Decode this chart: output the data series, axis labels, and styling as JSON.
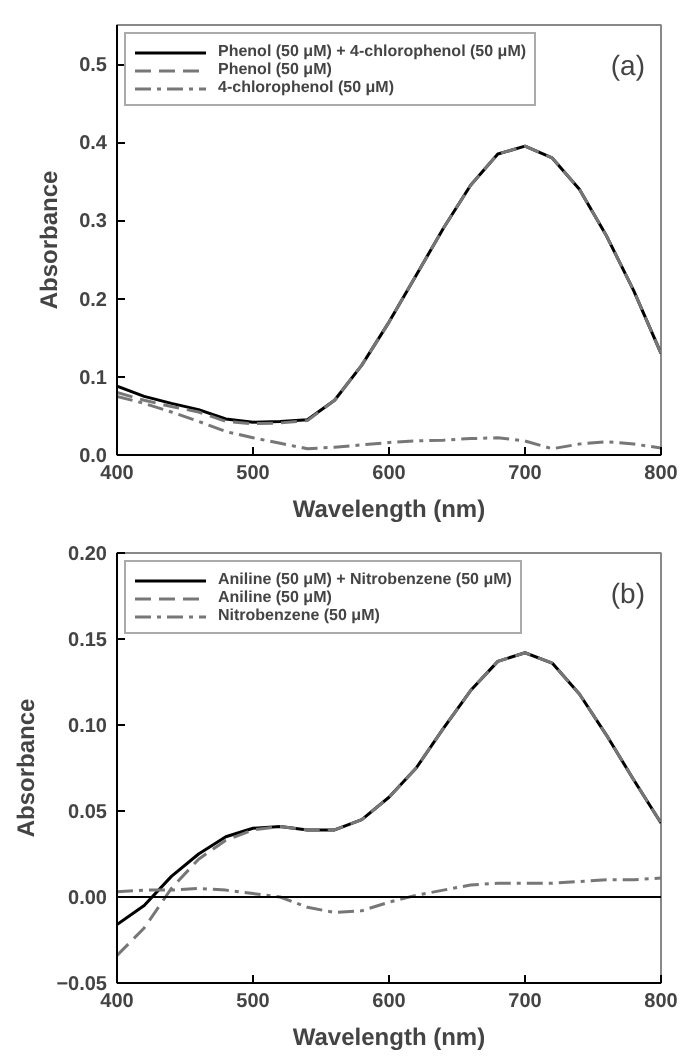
{
  "chart_data": [
    {
      "type": "line",
      "xlabel": "Wavelength (nm)",
      "ylabel": "Absorbance",
      "annotations": [
        "(a)"
      ],
      "legend": "top left",
      "grid": false,
      "x": [
        400,
        420,
        440,
        460,
        480,
        500,
        520,
        540,
        560,
        580,
        600,
        620,
        640,
        660,
        680,
        700,
        720,
        740,
        760,
        780,
        800
      ],
      "xlim": [
        400,
        800
      ],
      "xticks": [
        400,
        500,
        600,
        700,
        800
      ],
      "ylim": [
        0,
        0.55
      ],
      "yticks": [
        {
          "value": 0,
          "label": "0.0"
        },
        0.1,
        0.2,
        0.3,
        0.4,
        0.5
      ],
      "series": [
        {
          "name": "Phenol (50 μM) + 4-chlorophenol (50 μM)",
          "color": "#000000",
          "line_style": "solid",
          "values": [
            0.088,
            0.075,
            0.066,
            0.058,
            0.046,
            0.042,
            0.043,
            0.045,
            0.07,
            0.115,
            0.17,
            0.23,
            0.29,
            0.345,
            0.385,
            0.395,
            0.38,
            0.34,
            0.28,
            0.21,
            0.13
          ]
        },
        {
          "name": "Phenol (50 μM)",
          "color": "#777777",
          "line_style": "dashed",
          "values": [
            0.08,
            0.07,
            0.062,
            0.055,
            0.043,
            0.04,
            0.041,
            0.044,
            0.07,
            0.115,
            0.17,
            0.23,
            0.29,
            0.345,
            0.385,
            0.395,
            0.38,
            0.34,
            0.28,
            0.21,
            0.13
          ]
        },
        {
          "name": "4-chlorophenol (50 μM)",
          "color": "#777777",
          "line_style": "dashdot",
          "values": [
            0.075,
            0.066,
            0.055,
            0.043,
            0.03,
            0.022,
            0.015,
            0.008,
            0.01,
            0.013,
            0.016,
            0.018,
            0.019,
            0.021,
            0.022,
            0.018,
            0.008,
            0.014,
            0.017,
            0.014,
            0.009
          ]
        }
      ]
    },
    {
      "type": "line",
      "xlabel": "Wavelength (nm)",
      "ylabel": "Absorbance",
      "annotations": [
        "(b)"
      ],
      "legend": "top left",
      "grid": false,
      "x": [
        400,
        420,
        440,
        460,
        480,
        500,
        520,
        540,
        560,
        580,
        600,
        620,
        640,
        660,
        680,
        700,
        720,
        740,
        760,
        780,
        800
      ],
      "xlim": [
        400,
        800
      ],
      "xticks": [
        400,
        500,
        600,
        700,
        800
      ],
      "ylim": [
        -0.05,
        0.2
      ],
      "yticks": [
        -0.05,
        {
          "value": 0,
          "label": "0.00"
        },
        0.05,
        {
          "value": 0.1,
          "label": "0.10"
        },
        0.15,
        {
          "value": 0.2,
          "label": "0.20"
        }
      ],
      "ref_lines": [
        {
          "axis": "y",
          "value": 0,
          "color": "#000000",
          "line_style": "solid"
        }
      ],
      "series": [
        {
          "name": "Aniline (50 μM) + Nitrobenzene (50 μM)",
          "color": "#000000",
          "line_style": "solid",
          "values": [
            -0.016,
            -0.005,
            0.012,
            0.025,
            0.035,
            0.04,
            0.041,
            0.039,
            0.039,
            0.045,
            0.058,
            0.075,
            0.098,
            0.12,
            0.137,
            0.142,
            0.136,
            0.118,
            0.094,
            0.068,
            0.043
          ]
        },
        {
          "name": "Aniline (50 μM)",
          "color": "#777777",
          "line_style": "dashed",
          "values": [
            -0.034,
            -0.018,
            0.005,
            0.022,
            0.033,
            0.039,
            0.041,
            0.039,
            0.039,
            0.045,
            0.058,
            0.075,
            0.098,
            0.12,
            0.137,
            0.142,
            0.136,
            0.118,
            0.094,
            0.068,
            0.043
          ]
        },
        {
          "name": "Nitrobenzene (50 μM)",
          "color": "#777777",
          "line_style": "dashdot",
          "values": [
            0.003,
            0.004,
            0.004,
            0.005,
            0.004,
            0.002,
            0.0,
            -0.006,
            -0.009,
            -0.008,
            -0.003,
            0.001,
            0.004,
            0.007,
            0.008,
            0.008,
            0.008,
            0.009,
            0.01,
            0.01,
            0.011
          ]
        }
      ]
    }
  ]
}
